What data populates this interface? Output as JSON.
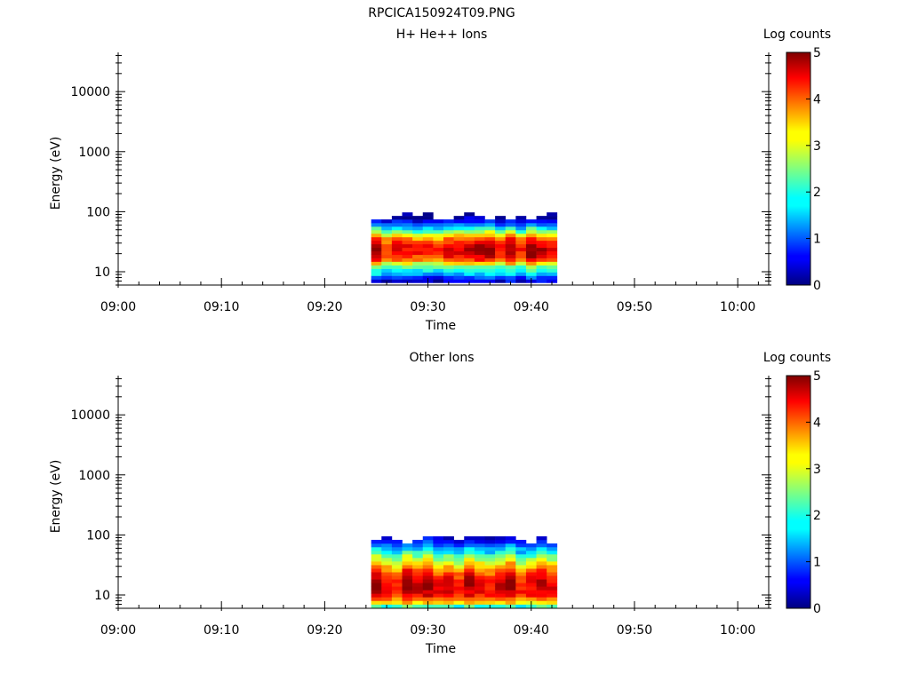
{
  "figure_title": "RPCICA150924T09.PNG",
  "chart_data": [
    {
      "type": "heatmap",
      "title": "H+ He++ Ions",
      "xlabel": "Time",
      "ylabel": "Energy (eV)",
      "y_scale": "log",
      "ylim": [
        6,
        45000
      ],
      "x_range": [
        "09:00",
        "10:03"
      ],
      "x_ticks": [
        "09:00",
        "09:10",
        "09:20",
        "09:30",
        "09:40",
        "09:50",
        "10:00"
      ],
      "y_ticks": [
        "10",
        "100",
        "1000",
        "10000"
      ],
      "colorbar": {
        "label": "Log counts",
        "min": 0,
        "max": 5,
        "ticks": [
          "0",
          "1",
          "2",
          "3",
          "4",
          "5"
        ],
        "colormap": "jet"
      },
      "time_bins_start": "09:24.5",
      "time_bin_minutes": 1,
      "time_bins_end": "09:42.5",
      "energy_bins_eV": [
        7,
        8,
        9.2,
        10.5,
        12,
        13.8,
        15.8,
        18,
        20.6,
        23.6,
        27,
        31,
        35.4,
        40.5,
        46.4,
        53,
        60.7,
        69.5,
        79.5,
        91
      ],
      "log_counts_profile": [
        0.5,
        0.9,
        1.6,
        2.0,
        2.4,
        3.2,
        4.0,
        4.4,
        4.6,
        4.6,
        4.5,
        4.3,
        3.9,
        3.3,
        2.6,
        1.9,
        1.2,
        0.7,
        0.3,
        0.15
      ]
    },
    {
      "type": "heatmap",
      "title": "Other Ions",
      "xlabel": "Time",
      "ylabel": "Energy (eV)",
      "y_scale": "log",
      "ylim": [
        6,
        45000
      ],
      "x_range": [
        "09:00",
        "10:03"
      ],
      "x_ticks": [
        "09:00",
        "09:10",
        "09:20",
        "09:30",
        "09:40",
        "09:50",
        "10:00"
      ],
      "y_ticks": [
        "10",
        "100",
        "1000",
        "10000"
      ],
      "colorbar": {
        "label": "Log counts",
        "min": 0,
        "max": 5,
        "ticks": [
          "0",
          "1",
          "2",
          "3",
          "4",
          "5"
        ],
        "colormap": "jet"
      },
      "time_bins_start": "09:24.5",
      "time_bin_minutes": 1,
      "time_bins_end": "09:42.5",
      "energy_bins_eV": [
        6.5,
        7.5,
        8.6,
        9.9,
        11.3,
        13,
        14.9,
        17.1,
        19.6,
        22.5,
        25.8,
        29.6,
        34,
        39,
        44.7,
        51.3,
        58.8,
        67.4,
        77.3,
        88.7
      ],
      "log_counts_profile": [
        2.2,
        3.3,
        3.9,
        4.3,
        4.5,
        4.6,
        4.6,
        4.5,
        4.4,
        4.2,
        3.9,
        3.6,
        3.2,
        2.8,
        2.4,
        2.0,
        1.6,
        1.2,
        0.8,
        0.4
      ]
    }
  ]
}
